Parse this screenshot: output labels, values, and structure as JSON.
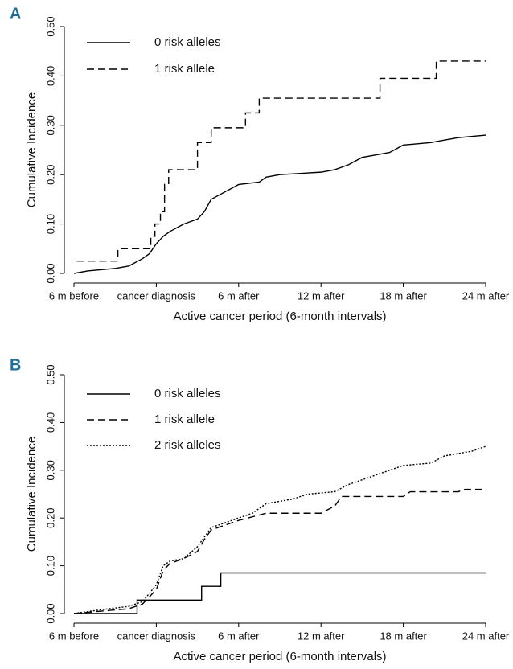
{
  "chart_data": [
    {
      "type": "line",
      "panel": "A",
      "xlabel": "Active cancer period (6-month intervals)",
      "ylabel": "Cumulative Incidence",
      "xlim": [
        -6,
        24
      ],
      "ylim": [
        0,
        0.5
      ],
      "xticks": [
        {
          "value": -6,
          "label": "6 m before"
        },
        {
          "value": 0,
          "label": "cancer diagnosis"
        },
        {
          "value": 6,
          "label": "6 m after"
        },
        {
          "value": 12,
          "label": "12 m after"
        },
        {
          "value": 18,
          "label": "18 m after"
        },
        {
          "value": 24,
          "label": "24 m after"
        }
      ],
      "yticks": [
        {
          "value": 0,
          "label": "0.00"
        },
        {
          "value": 0.1,
          "label": "0.10"
        },
        {
          "value": 0.2,
          "label": "0.20"
        },
        {
          "value": 0.3,
          "label": "0.30"
        },
        {
          "value": 0.4,
          "label": "0.40"
        },
        {
          "value": 0.5,
          "label": "0.50"
        }
      ],
      "series": [
        {
          "name": "0 risk alleles",
          "color": "#000000",
          "dash": "solid",
          "x": [
            -6,
            -5,
            -3,
            -2,
            -1,
            -0.5,
            0,
            0.5,
            1,
            2,
            3,
            3.5,
            4,
            5,
            6,
            7.5,
            8,
            9,
            12,
            13,
            14,
            15,
            16,
            17,
            18,
            20,
            21,
            22,
            24
          ],
          "values": [
            0,
            0.005,
            0.01,
            0.015,
            0.03,
            0.04,
            0.06,
            0.075,
            0.085,
            0.1,
            0.11,
            0.125,
            0.15,
            0.165,
            0.18,
            0.185,
            0.195,
            0.2,
            0.205,
            0.21,
            0.22,
            0.235,
            0.24,
            0.245,
            0.26,
            0.265,
            0.27,
            0.275,
            0.28
          ]
        },
        {
          "name": "1 risk allele",
          "color": "#000000",
          "dash": "dashed",
          "x": [
            -5.8,
            -2.8,
            -2.8,
            -0.4,
            -0.4,
            -0.1,
            -0.1,
            0.3,
            0.3,
            0.6,
            0.6,
            0.9,
            0.9,
            3,
            3,
            4,
            4,
            6.5,
            6.5,
            7.5,
            7.5,
            16.3,
            16.3,
            20.4,
            20.4,
            24
          ],
          "values": [
            0.025,
            0.025,
            0.05,
            0.05,
            0.075,
            0.075,
            0.1,
            0.1,
            0.125,
            0.125,
            0.18,
            0.18,
            0.21,
            0.21,
            0.265,
            0.265,
            0.295,
            0.295,
            0.325,
            0.325,
            0.355,
            0.355,
            0.395,
            0.395,
            0.43,
            0.43
          ]
        }
      ]
    },
    {
      "type": "line",
      "panel": "B",
      "xlabel": "Active cancer period (6-month intervals)",
      "ylabel": "Cumulative Incidence",
      "xlim": [
        -6,
        24
      ],
      "ylim": [
        0,
        0.5
      ],
      "xticks": [
        {
          "value": -6,
          "label": "6 m before"
        },
        {
          "value": 0,
          "label": "cancer diagnosis"
        },
        {
          "value": 6,
          "label": "6 m after"
        },
        {
          "value": 12,
          "label": "12 m after"
        },
        {
          "value": 18,
          "label": "18 m after"
        },
        {
          "value": 24,
          "label": "24 m after"
        }
      ],
      "yticks": [
        {
          "value": 0,
          "label": "0.00"
        },
        {
          "value": 0.1,
          "label": "0.10"
        },
        {
          "value": 0.2,
          "label": "0.20"
        },
        {
          "value": 0.3,
          "label": "0.30"
        },
        {
          "value": 0.4,
          "label": "0.40"
        },
        {
          "value": 0.5,
          "label": "0.50"
        }
      ],
      "series": [
        {
          "name": "0 risk alleles",
          "color": "#000000",
          "dash": "solid",
          "x": [
            -6,
            -1.4,
            -1.4,
            3.3,
            3.3,
            4.7,
            4.7,
            24
          ],
          "values": [
            0,
            0,
            0.028,
            0.028,
            0.057,
            0.057,
            0.085,
            0.085
          ]
        },
        {
          "name": "1 risk allele",
          "color": "#000000",
          "dash": "dashed",
          "x": [
            -6,
            -4,
            -2,
            -1,
            0,
            0.5,
            1,
            2,
            3,
            3.5,
            4,
            5,
            6,
            8,
            12,
            13,
            13.5,
            18,
            18.5,
            22,
            22.5,
            24
          ],
          "values": [
            0,
            0.005,
            0.01,
            0.02,
            0.05,
            0.09,
            0.105,
            0.115,
            0.13,
            0.155,
            0.175,
            0.185,
            0.195,
            0.21,
            0.21,
            0.225,
            0.245,
            0.245,
            0.255,
            0.255,
            0.26,
            0.26
          ]
        },
        {
          "name": "2 risk alleles",
          "color": "#000000",
          "dash": "dotted",
          "x": [
            -6,
            -4,
            -2,
            -1,
            0,
            0.5,
            1,
            2,
            3,
            3.5,
            4,
            5,
            6,
            7,
            8,
            10,
            11,
            13,
            14,
            16,
            18,
            20,
            21,
            23,
            24
          ],
          "values": [
            0,
            0.008,
            0.015,
            0.025,
            0.06,
            0.1,
            0.11,
            0.115,
            0.14,
            0.16,
            0.18,
            0.19,
            0.2,
            0.21,
            0.23,
            0.24,
            0.25,
            0.255,
            0.27,
            0.29,
            0.31,
            0.315,
            0.33,
            0.34,
            0.35
          ]
        }
      ]
    }
  ]
}
